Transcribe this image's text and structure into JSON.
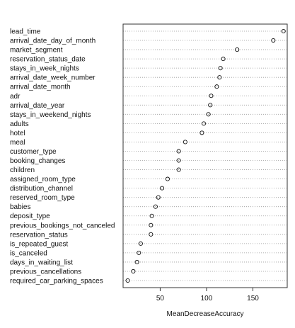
{
  "chart_data": {
    "type": "scatter",
    "style": "dotchart",
    "xlabel": "MeanDecreaseAccuracy",
    "xlim": [
      10,
      187
    ],
    "xticks": [
      50,
      100,
      150
    ],
    "grid": "dotted horizontal lines per category",
    "categories": [
      "lead_time",
      "arrival_date_day_of_month",
      "market_segment",
      "reservation_status_date",
      "stays_in_week_nights",
      "arrival_date_week_number",
      "arrival_date_month",
      "adr",
      "arrival_date_year",
      "stays_in_weekend_nights",
      "adults",
      "hotel",
      "meal",
      "customer_type",
      "booking_changes",
      "children",
      "assigned_room_type",
      "distribution_channel",
      "reserved_room_type",
      "babies",
      "deposit_type",
      "previous_bookings_not_canceled",
      "reservation_status",
      "is_repeated_guest",
      "is_canceled",
      "days_in_waiting_list",
      "previous_cancellations",
      "required_car_parking_spaces"
    ],
    "values": [
      183,
      172,
      133,
      118,
      115,
      114,
      111,
      105,
      104,
      102,
      97,
      95,
      77,
      70,
      70,
      70,
      58,
      52,
      48,
      45,
      41,
      40,
      40,
      29,
      27,
      25,
      21,
      15
    ]
  }
}
